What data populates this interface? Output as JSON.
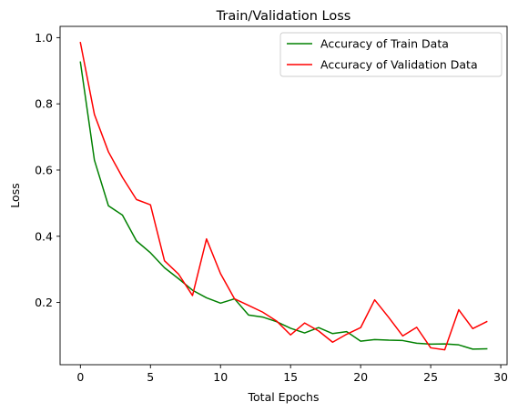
{
  "chart_data": {
    "type": "line",
    "title": "Train/Validation Loss",
    "xlabel": "Total Epochs",
    "ylabel": "Loss",
    "xlim": [
      -1.45,
      30.45
    ],
    "ylim": [
      0.012,
      1.034
    ],
    "xticks": [
      0,
      5,
      10,
      15,
      20,
      25,
      30
    ],
    "yticks": [
      0.2,
      0.4,
      0.6,
      0.8,
      1.0
    ],
    "xtick_labels": [
      "0",
      "5",
      "10",
      "15",
      "20",
      "25",
      "30"
    ],
    "ytick_labels": [
      "0.2",
      "0.4",
      "0.6",
      "0.8",
      "1.0"
    ],
    "grid": false,
    "legend_position": "top-right",
    "x": [
      0,
      1,
      2,
      3,
      4,
      5,
      6,
      7,
      8,
      9,
      10,
      11,
      12,
      13,
      14,
      15,
      16,
      17,
      18,
      19,
      20,
      21,
      22,
      23,
      24,
      25,
      26,
      27,
      28,
      29
    ],
    "series": [
      {
        "name": "Accuracy of Train Data",
        "color": "#008000",
        "values": [
          0.926,
          0.63,
          0.492,
          0.464,
          0.386,
          0.35,
          0.305,
          0.272,
          0.237,
          0.214,
          0.198,
          0.211,
          0.162,
          0.156,
          0.142,
          0.122,
          0.108,
          0.124,
          0.106,
          0.112,
          0.083,
          0.088,
          0.086,
          0.085,
          0.077,
          0.074,
          0.075,
          0.072,
          0.059,
          0.06
        ]
      },
      {
        "name": "Accuracy of Validation Data",
        "color": "#ff0000",
        "values": [
          0.985,
          0.768,
          0.655,
          0.578,
          0.511,
          0.495,
          0.326,
          0.286,
          0.221,
          0.392,
          0.287,
          0.211,
          0.191,
          0.171,
          0.144,
          0.102,
          0.138,
          0.114,
          0.08,
          0.104,
          0.124,
          0.208,
          0.155,
          0.099,
          0.125,
          0.063,
          0.057,
          0.178,
          0.121,
          0.142
        ]
      }
    ]
  }
}
